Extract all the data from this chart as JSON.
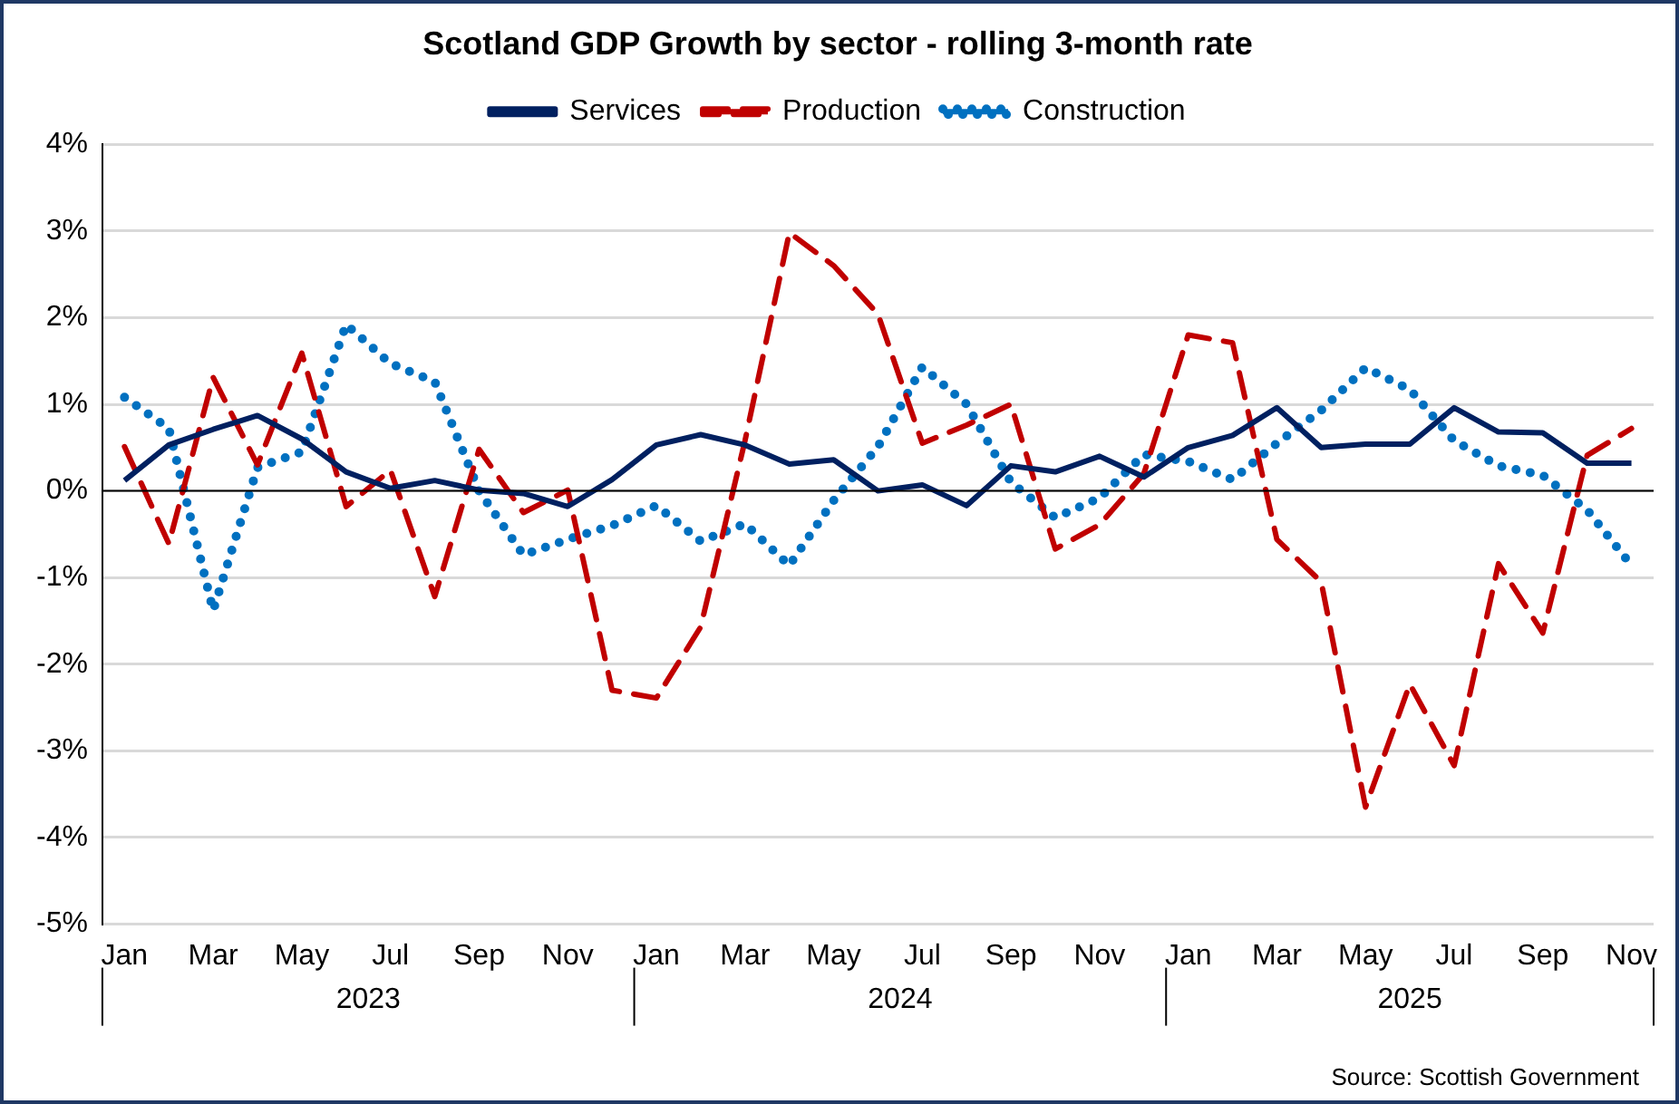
{
  "chart_data": {
    "type": "line",
    "title": "Scotland GDP Growth by sector - rolling 3-month rate",
    "categories": [
      "Jan",
      null,
      "Mar",
      null,
      "May",
      null,
      "Jul",
      null,
      "Sep",
      null,
      "Nov",
      null,
      "Jan",
      null,
      "Mar",
      null,
      "May",
      null,
      "Jul",
      null,
      "Sep",
      null,
      "Nov",
      null,
      "Jan",
      null,
      "Mar",
      null,
      "May",
      null,
      "Jul",
      null,
      "Sep",
      null,
      "Nov"
    ],
    "series": [
      {
        "name": "Services",
        "color": "#002060",
        "line_style": "solid",
        "values": [
          0.12,
          0.53,
          0.71,
          0.87,
          0.6,
          0.22,
          0.03,
          0.12,
          0.01,
          -0.03,
          -0.18,
          0.13,
          0.53,
          0.65,
          0.53,
          0.31,
          0.36,
          0.0,
          0.07,
          -0.17,
          0.29,
          0.22,
          0.4,
          0.16,
          0.5,
          0.64,
          0.96,
          0.5,
          0.54,
          0.54,
          0.96,
          0.68,
          0.67,
          0.32,
          0.32
        ]
      },
      {
        "name": "Production",
        "color": "#c00000",
        "line_style": "dashed",
        "values": [
          0.51,
          -0.61,
          1.31,
          0.3,
          1.59,
          -0.18,
          0.24,
          -1.22,
          0.48,
          -0.25,
          0.01,
          -2.3,
          -2.39,
          -1.57,
          0.58,
          2.98,
          2.6,
          2.04,
          0.55,
          0.76,
          1.0,
          -0.67,
          -0.39,
          0.2,
          1.8,
          1.71,
          -0.56,
          -1.05,
          -3.65,
          -2.23,
          -3.17,
          -0.84,
          -1.64,
          0.41,
          0.72
        ]
      },
      {
        "name": "Construction",
        "color": "#0070c0",
        "line_style": "dotted",
        "values": [
          1.08,
          0.72,
          -1.38,
          0.27,
          0.45,
          1.92,
          1.47,
          1.26,
          0.0,
          -0.74,
          -0.56,
          -0.4,
          -0.17,
          -0.58,
          -0.38,
          -0.86,
          -0.11,
          0.51,
          1.43,
          1.0,
          0.1,
          -0.31,
          -0.08,
          0.42,
          0.34,
          0.13,
          0.55,
          0.93,
          1.42,
          1.17,
          0.58,
          0.29,
          0.18,
          -0.22,
          -0.86
        ]
      }
    ],
    "ylim": [
      -5,
      4
    ],
    "yticks": [
      {
        "value": -5,
        "label": "-5%"
      },
      {
        "value": -4,
        "label": "-4%"
      },
      {
        "value": -3,
        "label": "-3%"
      },
      {
        "value": -2,
        "label": "-2%"
      },
      {
        "value": -1,
        "label": "-1%"
      },
      {
        "value": 0,
        "label": "0%"
      },
      {
        "value": 1,
        "label": "1%"
      },
      {
        "value": 2,
        "label": "2%"
      },
      {
        "value": 3,
        "label": "3%"
      },
      {
        "value": 4,
        "label": "4%"
      }
    ],
    "grid": "y",
    "legend": "top",
    "marker": "none",
    "annotations": [
      "2023",
      "2024",
      "2025",
      "Source: Scottish Government"
    ]
  }
}
